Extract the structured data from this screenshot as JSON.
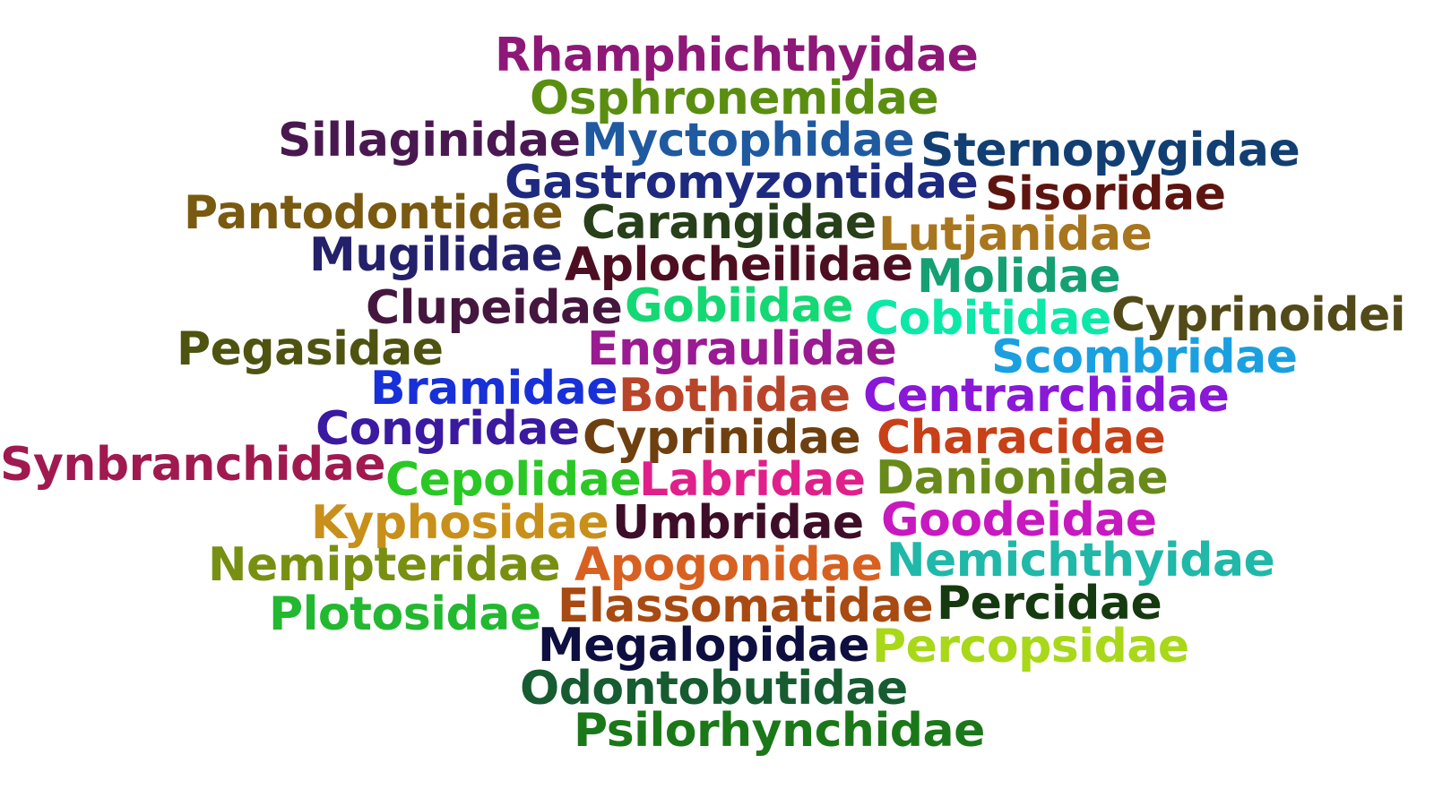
{
  "words": [
    {
      "text": "Rhamphichthyidae",
      "color": "#8e1877"
    },
    {
      "text": "Osphronemidae",
      "color": "#5a8e10"
    },
    {
      "text": "Sillaginidae",
      "color": "#4a1850"
    },
    {
      "text": "Myctophidae",
      "color": "#1f5aa0"
    },
    {
      "text": "Sternopygidae",
      "color": "#113f73"
    },
    {
      "text": "Gastromyzontidae",
      "color": "#1e2a80"
    },
    {
      "text": "Sisoridae",
      "color": "#5e1510"
    },
    {
      "text": "Pantodontidae",
      "color": "#7a5a10"
    },
    {
      "text": "Carangidae",
      "color": "#27401a"
    },
    {
      "text": "Lutjanidae",
      "color": "#a8761f"
    },
    {
      "text": "Mugilidae",
      "color": "#24206a"
    },
    {
      "text": "Aplocheilidae",
      "color": "#4e0e22"
    },
    {
      "text": "Molidae",
      "color": "#14a073"
    },
    {
      "text": "Clupeidae",
      "color": "#45173f"
    },
    {
      "text": "Gobiidae",
      "color": "#14d873"
    },
    {
      "text": "Cobitidae",
      "color": "#0ce8a8"
    },
    {
      "text": "Cyprinoidei",
      "color": "#524a18"
    },
    {
      "text": "Pegasidae",
      "color": "#4e5410"
    },
    {
      "text": "Engraulidae",
      "color": "#9a1a92"
    },
    {
      "text": "Scombridae",
      "color": "#1aa0e0"
    },
    {
      "text": "Bramidae",
      "color": "#1830d8"
    },
    {
      "text": "Bothidae",
      "color": "#b8452a"
    },
    {
      "text": "Centrarchidae",
      "color": "#8a18d8"
    },
    {
      "text": "Congridae",
      "color": "#3a1aa0"
    },
    {
      "text": "Cyprinidae",
      "color": "#6e4010"
    },
    {
      "text": "Characidae",
      "color": "#c84018"
    },
    {
      "text": "Synbranchidae",
      "color": "#a01a50"
    },
    {
      "text": "Cepolidae",
      "color": "#2ac825"
    },
    {
      "text": "Labridae",
      "color": "#e0208a"
    },
    {
      "text": "Danionidae",
      "color": "#688a1a"
    },
    {
      "text": "Kyphosidae",
      "color": "#c8901a"
    },
    {
      "text": "Umbridae",
      "color": "#3e0e28"
    },
    {
      "text": "Goodeidae",
      "color": "#c818c0"
    },
    {
      "text": "Nemipteridae",
      "color": "#789012"
    },
    {
      "text": "Apogonidae",
      "color": "#d86020"
    },
    {
      "text": "Nemichthyidae",
      "color": "#20b8a8"
    },
    {
      "text": "Elassomatidae",
      "color": "#a84a12"
    },
    {
      "text": "Percidae",
      "color": "#163a10"
    },
    {
      "text": "Plotosidae",
      "color": "#22b830"
    },
    {
      "text": "Megalopidae",
      "color": "#0e0e40"
    },
    {
      "text": "Percopsidae",
      "color": "#a8d818"
    },
    {
      "text": "Odontobutidae",
      "color": "#165c30"
    },
    {
      "text": "Psilorhynchidae",
      "color": "#1a7818"
    }
  ]
}
